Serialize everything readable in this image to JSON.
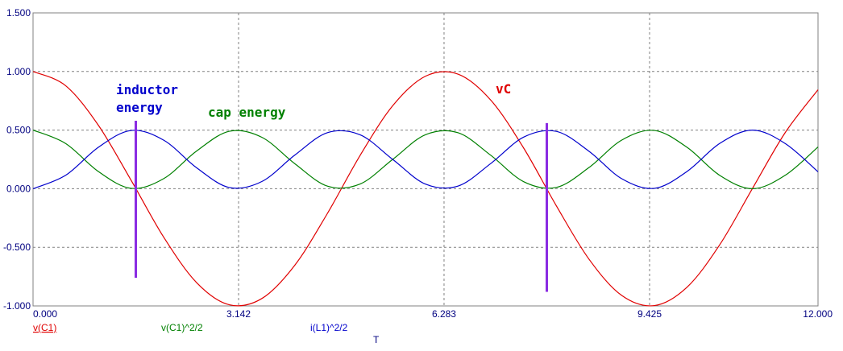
{
  "chart_data": {
    "type": "line",
    "x_axis": {
      "label": "T",
      "range": [
        0,
        12
      ],
      "ticks": [
        0,
        3.142,
        6.283,
        9.425,
        12
      ],
      "tick_labels": [
        "0.000",
        "3.142",
        "6.283",
        "9.425",
        "12.000"
      ]
    },
    "y_axis": {
      "range": [
        -1,
        1.5
      ],
      "ticks": [
        -1,
        -0.5,
        0,
        0.5,
        1,
        1.5
      ],
      "tick_labels": [
        "-1.000",
        "-0.500",
        "0.000",
        "0.500",
        "1.000",
        "1.500"
      ]
    },
    "grid": true,
    "series": [
      {
        "name": "v(C1)",
        "color": "#e00000",
        "x": [
          0,
          0.5,
          1,
          1.5,
          2,
          2.5,
          3,
          3.5,
          4,
          4.5,
          5,
          5.5,
          6,
          6.5,
          7,
          7.5,
          8,
          8.5,
          9,
          9.5,
          10,
          10.5,
          11,
          11.5,
          12
        ],
        "values": [
          1.0,
          0.878,
          0.54,
          0.071,
          -0.416,
          -0.801,
          -0.99,
          -0.936,
          -0.654,
          -0.211,
          0.284,
          0.709,
          0.96,
          0.977,
          0.754,
          0.347,
          -0.146,
          -0.602,
          -0.911,
          -0.997,
          -0.839,
          -0.476,
          0.004,
          0.48,
          0.844
        ]
      },
      {
        "name": "v(C1)^2/2",
        "color": "#008000",
        "x": [
          0,
          0.5,
          1,
          1.5,
          2,
          2.5,
          3,
          3.5,
          4,
          4.5,
          5,
          5.5,
          6,
          6.5,
          7,
          7.5,
          8,
          8.5,
          9,
          9.5,
          10,
          10.5,
          11,
          11.5,
          12
        ],
        "values": [
          0.5,
          0.385,
          0.146,
          0.003,
          0.087,
          0.321,
          0.49,
          0.438,
          0.214,
          0.022,
          0.04,
          0.251,
          0.461,
          0.477,
          0.284,
          0.06,
          0.011,
          0.181,
          0.415,
          0.497,
          0.352,
          0.113,
          0.0,
          0.115,
          0.356
        ]
      },
      {
        "name": "i(L1)^2/2",
        "color": "#0000cc",
        "x": [
          0,
          0.5,
          1,
          1.5,
          2,
          2.5,
          3,
          3.5,
          4,
          4.5,
          5,
          5.5,
          6,
          6.5,
          7,
          7.5,
          8,
          8.5,
          9,
          9.5,
          10,
          10.5,
          11,
          11.5,
          12
        ],
        "values": [
          0.0,
          0.115,
          0.354,
          0.497,
          0.413,
          0.179,
          0.01,
          0.062,
          0.286,
          0.478,
          0.46,
          0.249,
          0.039,
          0.023,
          0.216,
          0.44,
          0.489,
          0.319,
          0.085,
          0.003,
          0.148,
          0.387,
          0.5,
          0.385,
          0.144
        ]
      }
    ],
    "annotations": [
      {
        "text": "inductor",
        "color": "#0000cc"
      },
      {
        "text": "energy",
        "color": "#0000cc"
      },
      {
        "text": "cap energy",
        "color": "#008000"
      },
      {
        "text": "vC",
        "color": "#e00000"
      }
    ],
    "markers": [
      {
        "x": 1.571,
        "y_top": 0.58,
        "y_bottom": -0.76,
        "color": "#8a2be2"
      },
      {
        "x": 7.854,
        "y_top": 0.56,
        "y_bottom": -0.88,
        "color": "#8a2be2"
      }
    ]
  }
}
